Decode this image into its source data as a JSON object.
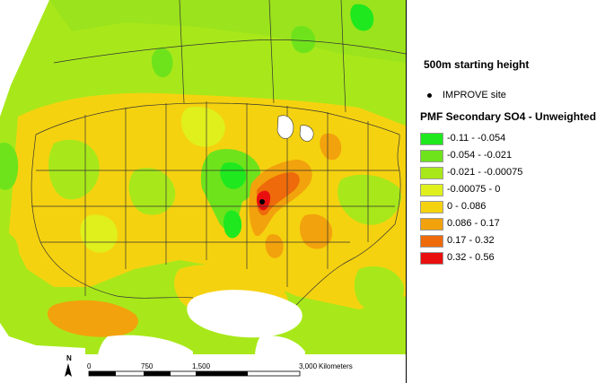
{
  "header": {
    "starting_height": "500m starting height"
  },
  "site_marker": {
    "label": "IMPROVE site"
  },
  "legend": {
    "title": "PMF Secondary SO4 - Unweighted",
    "classes": [
      {
        "label": "-0.11 - -0.054",
        "color": "#1fe81f"
      },
      {
        "label": "-0.054 - -0.021",
        "color": "#6ee31c"
      },
      {
        "label": "-0.021 - -0.00075",
        "color": "#a8e81a"
      },
      {
        "label": "-0.00075 - 0",
        "color": "#dff01c"
      },
      {
        "label": "0 - 0.086",
        "color": "#f5d20f"
      },
      {
        "label": "0.086 - 0.17",
        "color": "#f2a20c"
      },
      {
        "label": "0.17 - 0.32",
        "color": "#ee6a0a"
      },
      {
        "label": "0.32 - 0.56",
        "color": "#e90f0f"
      }
    ]
  },
  "scale_bar": {
    "north_label": "N",
    "ticks": [
      "0",
      "750",
      "1,500",
      "3,000"
    ],
    "unit": "Kilometers"
  }
}
